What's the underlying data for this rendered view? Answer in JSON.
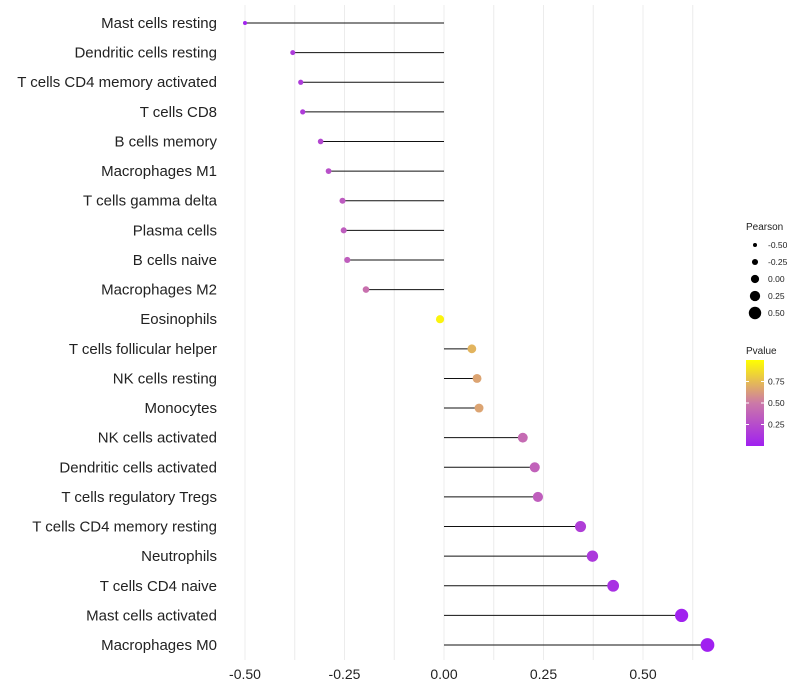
{
  "chart_data": {
    "type": "lollipop",
    "title": "",
    "xlabel": "",
    "ylabel": "",
    "xlim": [
      -0.55,
      0.7
    ],
    "x_ticks": [
      -0.5,
      -0.25,
      0.0,
      0.25,
      0.5
    ],
    "x_tick_labels": [
      "-0.50",
      "-0.25",
      "0.00",
      "0.25",
      "0.50"
    ],
    "grid": true,
    "categories": [
      "Mast cells resting",
      "Dendritic cells resting",
      "T cells CD4 memory activated",
      "T cells CD8",
      "B cells memory",
      "Macrophages M1",
      "T cells gamma delta",
      "Plasma cells",
      "B cells naive",
      "Macrophages M2",
      "Eosinophils",
      "T cells follicular helper",
      "NK cells resting",
      "Monocytes",
      "NK cells activated",
      "Dendritic cells activated",
      "T cells regulatory  Tregs ",
      "T cells CD4 memory resting",
      "Neutrophils",
      "T cells CD4 naive",
      "Mast cells activated",
      "Macrophages M0"
    ],
    "series": [
      {
        "name": "Pearson",
        "values": [
          -0.5,
          -0.38,
          -0.36,
          -0.355,
          -0.31,
          -0.29,
          -0.255,
          -0.252,
          -0.243,
          -0.196,
          -0.01,
          0.07,
          0.083,
          0.088,
          0.198,
          0.228,
          0.236,
          0.343,
          0.373,
          0.425,
          0.597,
          0.662
        ]
      },
      {
        "name": "Pvalue",
        "values": [
          0.02,
          0.15,
          0.15,
          0.16,
          0.22,
          0.27,
          0.33,
          0.34,
          0.35,
          0.45,
          0.96,
          0.72,
          0.66,
          0.66,
          0.42,
          0.37,
          0.35,
          0.17,
          0.14,
          0.09,
          0.01,
          0.002
        ]
      }
    ],
    "legend": {
      "position": "right",
      "size_legend": {
        "title": "Pearson",
        "values": [
          -0.5,
          -0.25,
          0.0,
          0.25,
          0.5
        ],
        "labels": [
          "-0.50",
          "-0.25",
          "0.00",
          "0.25",
          "0.50"
        ]
      },
      "color_legend": {
        "title": "Pvalue",
        "range": [
          0.0,
          1.0
        ],
        "tick_values": [
          0.25,
          0.5,
          0.75
        ],
        "tick_labels": [
          "0.25",
          "0.50",
          "0.75"
        ],
        "low_color": "#a020f0",
        "mid_color": "#cc79a7",
        "high_color": "#ffff00"
      }
    }
  }
}
